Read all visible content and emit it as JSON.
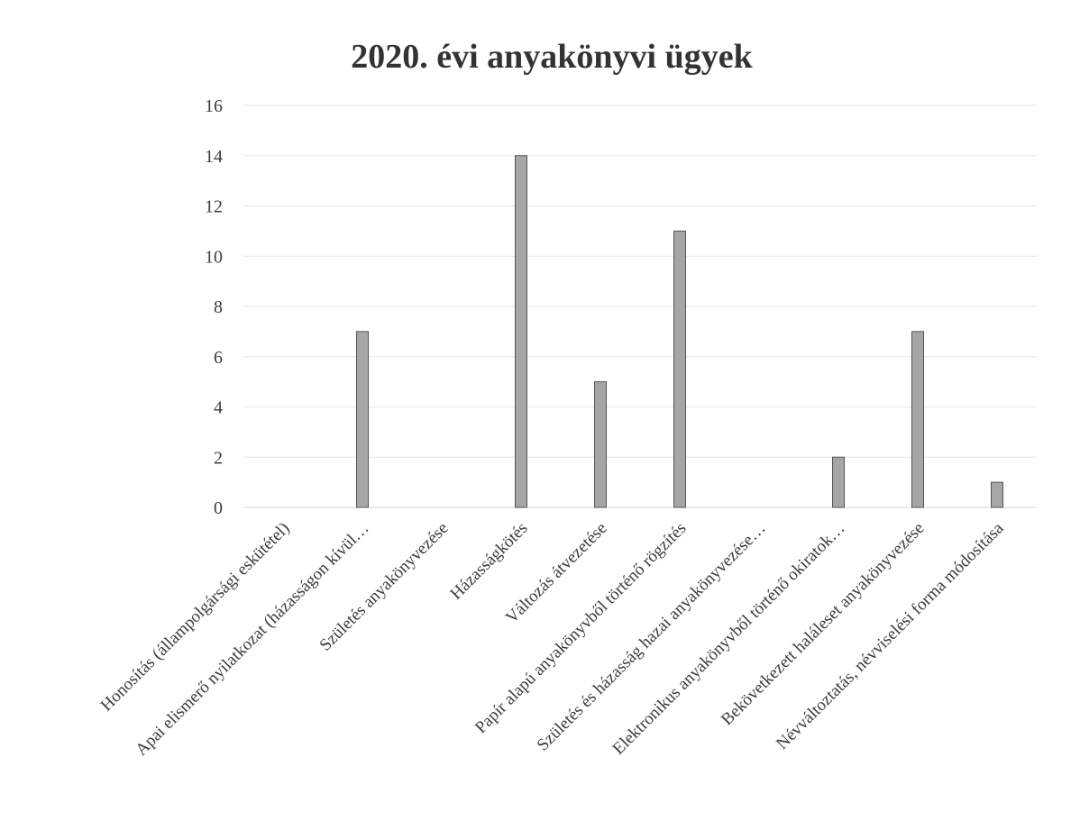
{
  "chart_data": {
    "type": "bar",
    "title": "2020. évi anyakönyvi ügyek",
    "xlabel": "",
    "ylabel": "",
    "categories": [
      "Honosítás (állampolgársági eskütétel)",
      "Apai elismerő nyilatkozat (házasságon kívül…",
      "Születés anyakönyvezése",
      "Házasságkötés",
      "Változás átvezetése",
      "Papír alapú anyakönyvből történő rögzítés",
      "Születés és házasság hazai anyakönyvezése…",
      "Elektronikus anyakönyvből történő okiratok…",
      "Bekövetkezett haláleset anyakönyvezése",
      "Névváltoztatás, névviselési forma módosítása"
    ],
    "values": [
      0,
      7,
      0,
      14,
      5,
      11,
      0,
      2,
      7,
      1
    ],
    "ylim": [
      0,
      16
    ],
    "yticks": [
      0,
      2,
      4,
      6,
      8,
      10,
      12,
      14,
      16
    ],
    "grid": true,
    "legend": "none",
    "colors": {
      "bar_fill": "#a6a6a6",
      "bar_stroke": "#555555",
      "gridline": "#e6e6e6"
    }
  }
}
